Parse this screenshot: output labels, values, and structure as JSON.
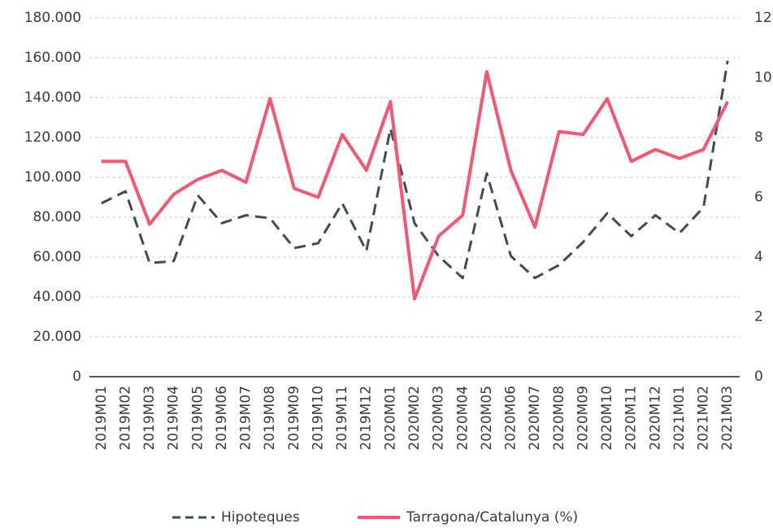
{
  "chart_data": {
    "type": "line",
    "categories": [
      "2019M01",
      "2019M02",
      "2019M03",
      "2019M04",
      "2019M05",
      "2019M06",
      "2019M07",
      "2019M08",
      "2019M09",
      "2019M10",
      "2019M11",
      "2019M12",
      "2020M01",
      "2020M02",
      "2020M03",
      "2020M04",
      "2020M05",
      "2020M06",
      "2020M07",
      "2020M08",
      "2020M09",
      "2020M10",
      "2020M11",
      "2020M12",
      "2021M01",
      "2021M02",
      "2021M03"
    ],
    "series": [
      {
        "name": "Hipoteques",
        "color": "#3d4b5a",
        "dashed": true,
        "values": [
          87000,
          93000,
          57000,
          58000,
          91000,
          77000,
          81000,
          79500,
          64500,
          67000,
          87000,
          63000,
          124500,
          77000,
          60500,
          49500,
          102000,
          60500,
          49500,
          56000,
          67500,
          82000,
          70500,
          81000,
          72000,
          85000,
          158500
        ]
      },
      {
        "name": "Tarragona/Catalunya (%)",
        "color": "#f6566f",
        "axis": "y2",
        "values": [
          7.2,
          7.2,
          5.1,
          6.1,
          6.6,
          6.9,
          6.5,
          9.3,
          6.3,
          6.0,
          8.1,
          6.9,
          9.2,
          2.6,
          4.7,
          5.4,
          10.2,
          6.9,
          5.0,
          8.2,
          8.1,
          9.3,
          7.2,
          7.6,
          7.3,
          7.6,
          9.2
        ]
      }
    ],
    "ylim": [
      0,
      180000
    ],
    "yticks": [
      0,
      {
        "value": 20000,
        "label": "20.000"
      },
      {
        "value": 40000,
        "label": "40.000"
      },
      {
        "value": 60000,
        "label": "60.000"
      },
      {
        "value": 80000,
        "label": "80.000"
      },
      {
        "value": 100000,
        "label": "100.000"
      },
      {
        "value": 120000,
        "label": "120.000"
      },
      {
        "value": 140000,
        "label": "140.000"
      },
      {
        "value": 160000,
        "label": "160.000"
      },
      {
        "value": 180000,
        "label": "180.000"
      }
    ],
    "y2lim": [
      0,
      12
    ],
    "y2ticks": [
      0,
      2,
      4,
      6,
      8,
      10,
      12
    ],
    "grid": true,
    "legend": "bottom"
  }
}
